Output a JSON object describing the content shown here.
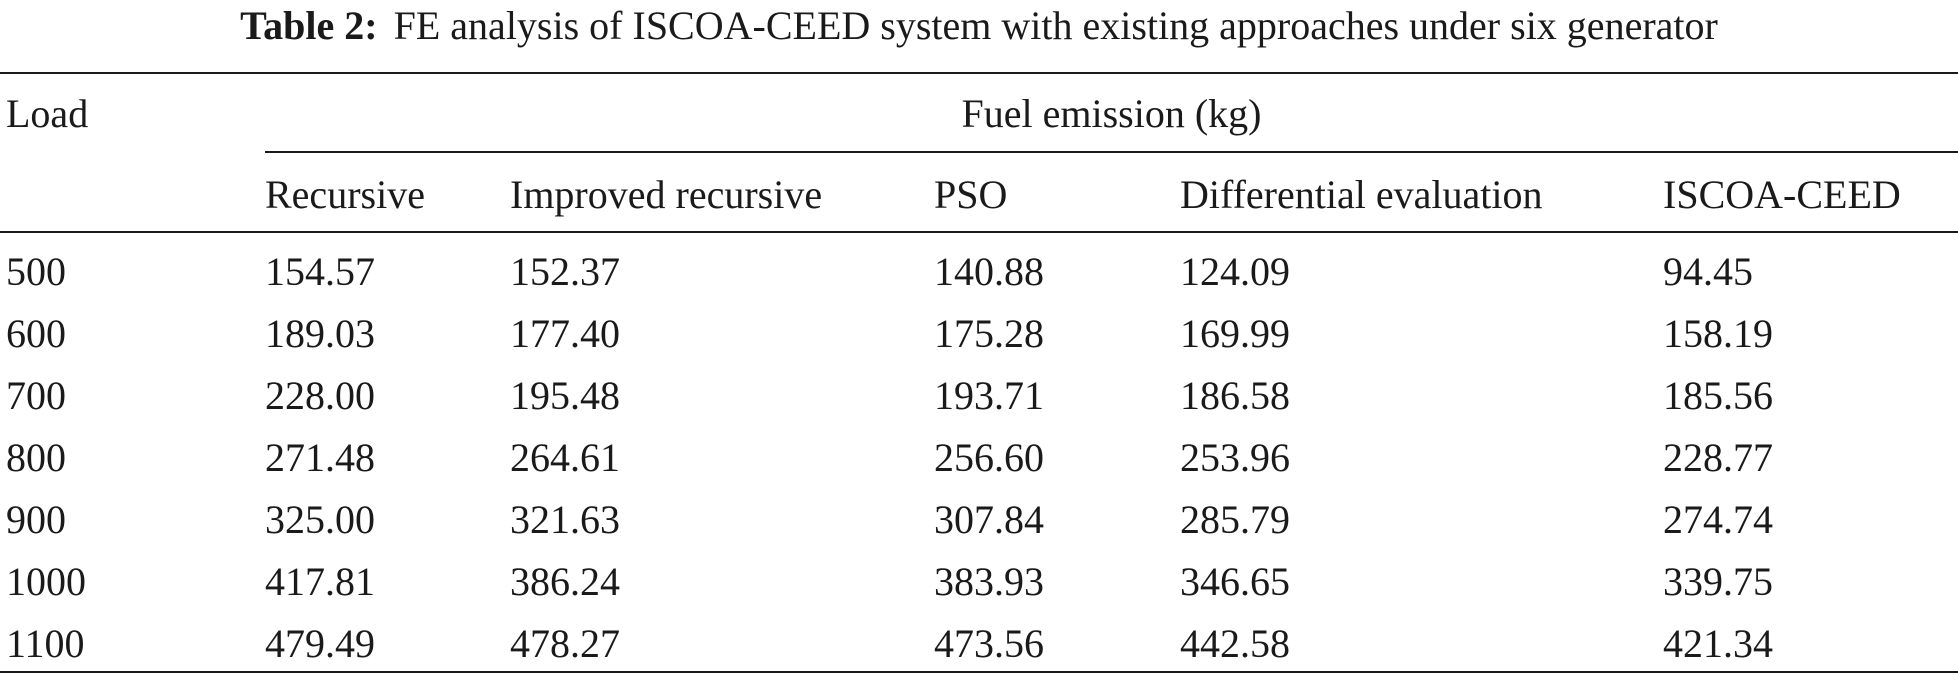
{
  "caption": {
    "label": "Table 2:",
    "text": "FE analysis of ISCOA-CEED system with existing approaches under six generator"
  },
  "table": {
    "row_header": "Load",
    "group_header": "Fuel emission (kg)",
    "columns": [
      "Recursive",
      "Improved recursive",
      "PSO",
      "Differential evaluation",
      "ISCOA-CEED"
    ],
    "rows": [
      {
        "load": "500",
        "values": [
          "154.57",
          "152.37",
          "140.88",
          "124.09",
          "94.45"
        ]
      },
      {
        "load": "600",
        "values": [
          "189.03",
          "177.40",
          "175.28",
          "169.99",
          "158.19"
        ]
      },
      {
        "load": "700",
        "values": [
          "228.00",
          "195.48",
          "193.71",
          "186.58",
          "185.56"
        ]
      },
      {
        "load": "800",
        "values": [
          "271.48",
          "264.61",
          "256.60",
          "253.96",
          "228.77"
        ]
      },
      {
        "load": "900",
        "values": [
          "325.00",
          "321.63",
          "307.84",
          "285.79",
          "274.74"
        ]
      },
      {
        "load": "1000",
        "values": [
          "417.81",
          "386.24",
          "383.93",
          "346.65",
          "339.75"
        ]
      },
      {
        "load": "1100",
        "values": [
          "479.49",
          "478.27",
          "473.56",
          "442.58",
          "421.34"
        ]
      }
    ]
  }
}
